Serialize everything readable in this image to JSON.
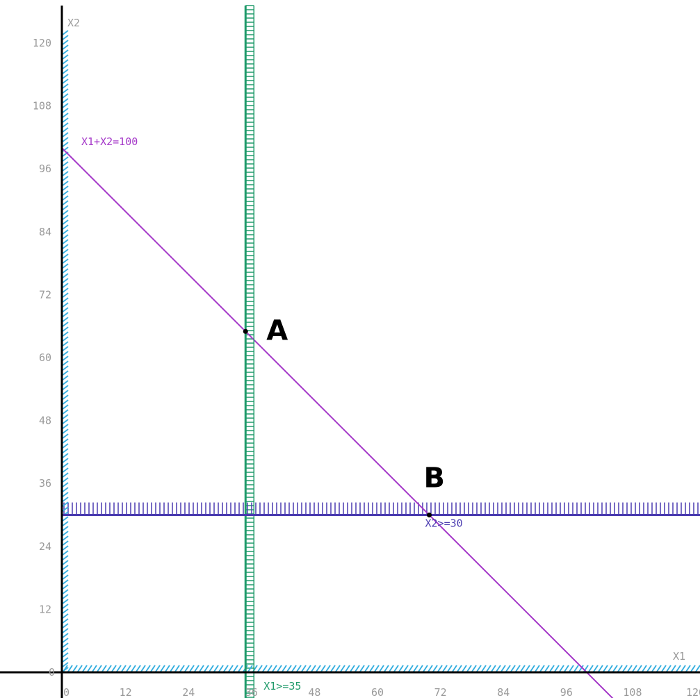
{
  "chart_data": {
    "type": "line",
    "title": "",
    "xlabel": "X1",
    "ylabel": "X2",
    "xlim": [
      0,
      120
    ],
    "ylim": [
      0,
      120
    ],
    "x_ticks": [
      0,
      12,
      24,
      36,
      48,
      60,
      72,
      84,
      96,
      108,
      120
    ],
    "y_ticks": [
      12,
      24,
      36,
      48,
      60,
      72,
      84,
      96,
      108,
      120
    ],
    "grid": false,
    "constraints": [
      {
        "name": "X1+X2=100",
        "kind": "line",
        "points": [
          [
            0,
            100
          ],
          [
            100,
            0
          ]
        ],
        "color": "#a437c8"
      },
      {
        "name": "X1>=35",
        "kind": "vertical",
        "x": 35,
        "hatch": "right",
        "color": "#1f9a6a"
      },
      {
        "name": "X2>=30",
        "kind": "horizontal",
        "y": 30,
        "hatch": "above",
        "color": "#4a3bb0"
      },
      {
        "name": "X1>=0",
        "kind": "vertical",
        "x": 0,
        "hatch": "right",
        "color": "#3ab0e0"
      },
      {
        "name": "X2>=0",
        "kind": "horizontal",
        "y": 0,
        "hatch": "above",
        "color": "#3ab0e0"
      }
    ],
    "points": [
      {
        "label": "A",
        "x": 35,
        "y": 65
      },
      {
        "label": "B",
        "x": 70,
        "y": 30
      }
    ]
  },
  "origin_mark": "0"
}
